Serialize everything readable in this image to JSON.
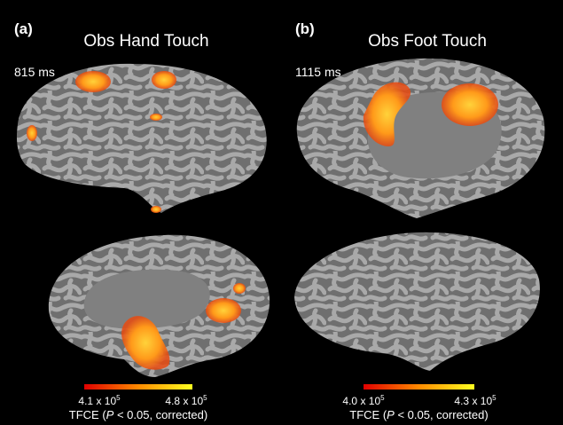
{
  "panels": [
    {
      "label": "(a)",
      "title": "Obs Hand Touch",
      "time": "815 ms",
      "colorbar": {
        "min": {
          "base": "4.1 x 10",
          "exponent": "5"
        },
        "max": {
          "base": "4.8 x 10",
          "exponent": "5"
        }
      },
      "caption": {
        "before": "TFCE (",
        "italic": "P",
        "after": " < 0.05, corrected)"
      }
    },
    {
      "label": "(b)",
      "title": "Obs Foot Touch",
      "time": "1115 ms",
      "colorbar": {
        "min": {
          "base": "4.0 x 10",
          "exponent": "5"
        },
        "max": {
          "base": "4.3 x 10",
          "exponent": "5"
        }
      },
      "caption": {
        "before": "TFCE (",
        "italic": "P",
        "after": " < 0.05, corrected)"
      }
    }
  ]
}
